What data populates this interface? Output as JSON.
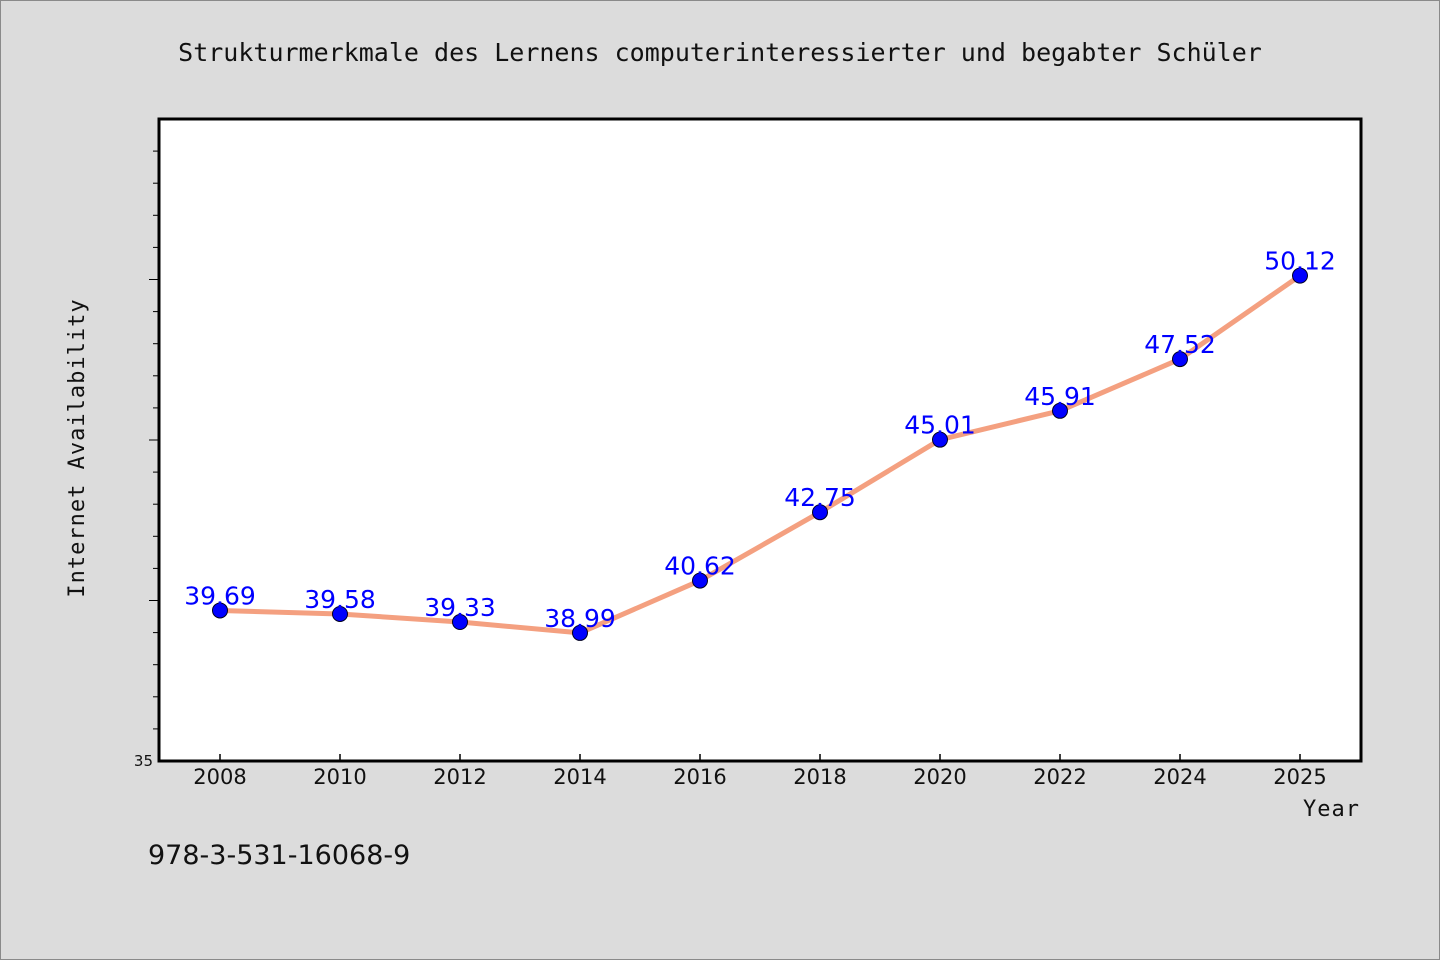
{
  "chart_data": {
    "type": "line",
    "title": "Strukturmerkmale des Lernens computerinteressierter und begabter Schüler",
    "xlabel": "Year",
    "ylabel": "Internet Availability",
    "categories": [
      "2008",
      "2010",
      "2012",
      "2014",
      "2016",
      "2018",
      "2020",
      "2022",
      "2024",
      "2025"
    ],
    "series": [
      {
        "values": [
          39.69,
          39.58,
          39.33,
          38.99,
          40.62,
          42.75,
          45.01,
          45.91,
          47.52,
          50.12
        ],
        "data_labels": [
          "39.69",
          "39.58",
          "39.33",
          "38.99",
          "40.62",
          "42.75",
          "45.01",
          "45.91",
          "47.52",
          "50.12"
        ]
      }
    ],
    "ylim": [
      35,
      55
    ],
    "ytick_labels": [
      "35"
    ],
    "grid": false,
    "legend": "none"
  },
  "note": "978-3-531-16068-9",
  "colors": {
    "line": "#f4a080",
    "marker": "#0000ff",
    "data_label": "#0000ff",
    "background": "#dcdcdc",
    "plot_background": "#ffffff"
  }
}
